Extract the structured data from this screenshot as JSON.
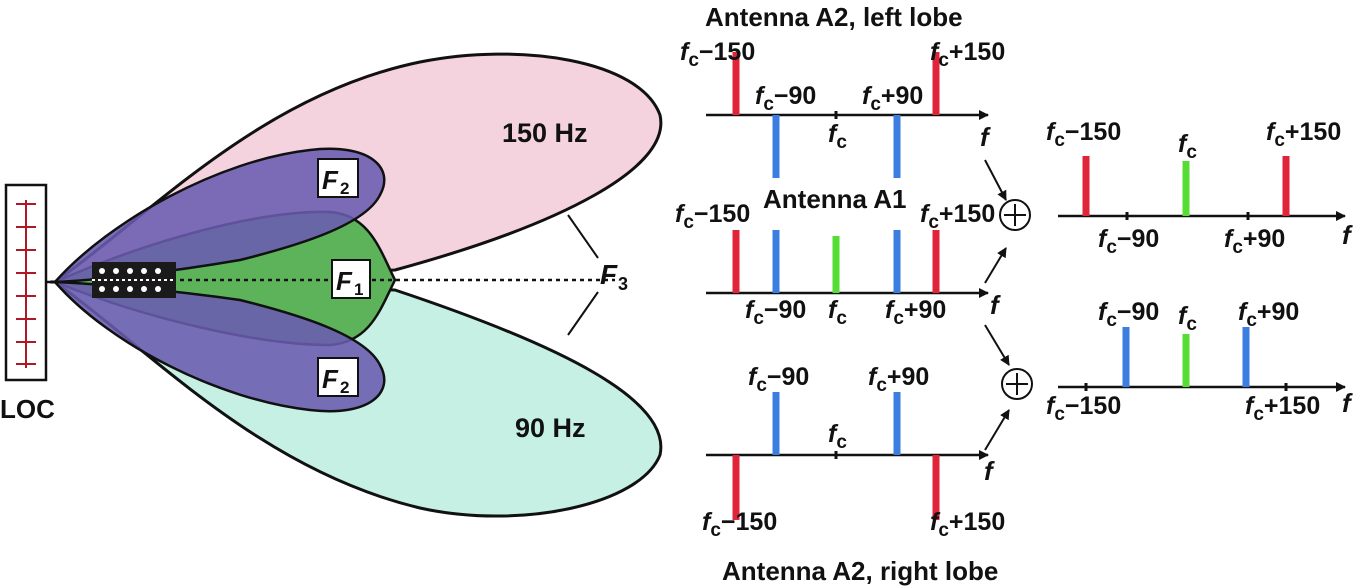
{
  "left_diagram": {
    "transmitter_label": "LOC",
    "upper_lobe_label": "150 Hz",
    "lower_lobe_label": "90 Hz",
    "F1_label": "F",
    "F1_sub": "1",
    "F2_label": "F",
    "F2_sub": "2",
    "F3_label": "F",
    "F3_sub": "3",
    "colors": {
      "upper_lobe": "#f5d3de",
      "lower_lobe": "#c5f0e3",
      "side_lobes": "#6a5bb0",
      "center_lobe": "#5db35a",
      "outline": "#111111"
    }
  },
  "spectra": {
    "fc_symbol": "f",
    "fc_sub": "c",
    "axis_symbol": "f",
    "titles": {
      "top": "Antenna A2, left lobe",
      "middle": "Antenna A1",
      "bottom": "Antenna A2, right lobe"
    },
    "labels": {
      "m150": "−150",
      "m90": "−90",
      "p90": "+90",
      "p150": "+150"
    },
    "sum_symbol": "+",
    "colors": {
      "red": "#e0253a",
      "blue": "#3b7ee0",
      "green": "#55dd35"
    }
  }
}
